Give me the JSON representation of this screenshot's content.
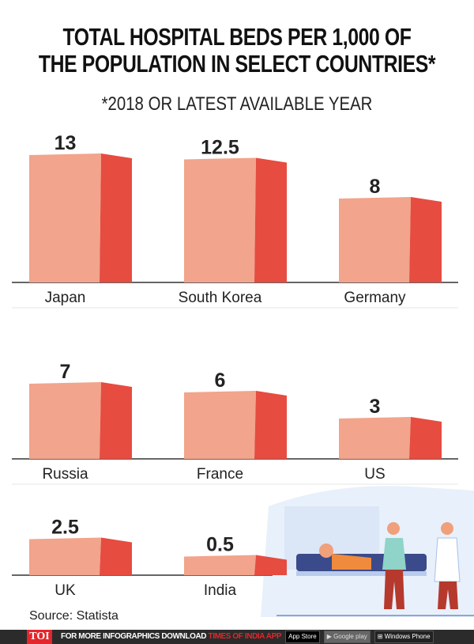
{
  "chart_data": {
    "type": "bar",
    "title": "TOTAL HOSPITAL BEDS PER 1,000 OF THE POPULATION IN SELECT COUNTRIES*",
    "subtitle": "*2018 OR LATEST AVAILABLE YEAR",
    "categories": [
      "Japan",
      "South Korea",
      "Germany",
      "Russia",
      "France",
      "US",
      "UK",
      "India"
    ],
    "values": [
      13,
      12.5,
      8,
      7,
      6,
      3,
      2.5,
      0.5
    ],
    "value_labels": [
      "13",
      "12.5",
      "8",
      "7",
      "6",
      "3",
      "2.5",
      "0.5"
    ],
    "colors": {
      "front": "#f2a48c",
      "side": "#e64c40",
      "axis": "#666666"
    }
  },
  "title_lines": [
    "TOTAL HOSPITAL BEDS PER 1,000 OF",
    "THE POPULATION IN SELECT COUNTRIES*"
  ],
  "source": "Source: Statista",
  "footer": {
    "logo": "TOI",
    "promo_white": "FOR MORE  INFOGRAPHICS DOWNLOAD ",
    "promo_red": "TIMES OF INDIA  APP",
    "app_store": "App Store",
    "google_play": "Google play",
    "windows": "Windows Phone"
  }
}
